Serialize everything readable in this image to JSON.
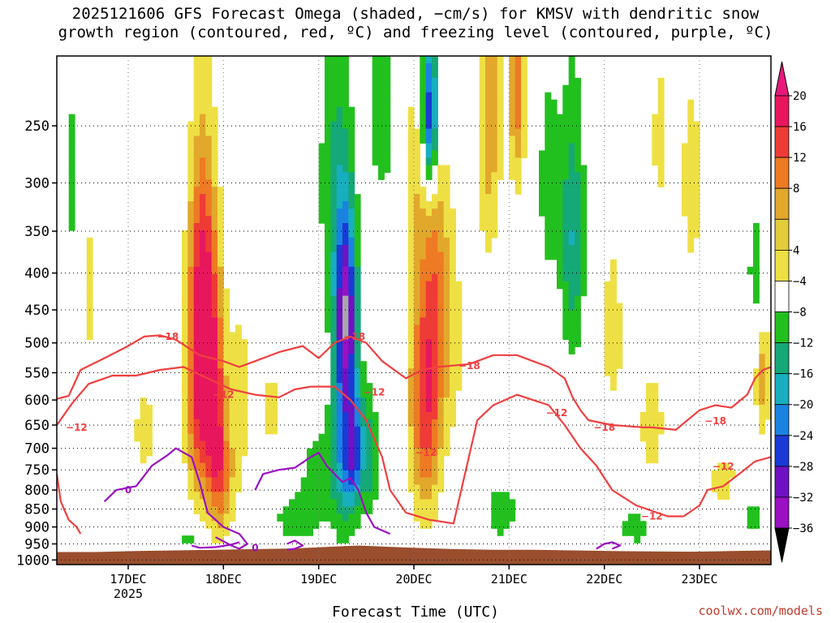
{
  "title_lines": [
    "2025121606 GFS Forecast Omega (shaded, −cm/s) for KMSV with dendritic snow",
    "growth region (contoured, red, ºC) and freezing level (contoured, purple, ºC)"
  ],
  "credit": "coolwx.com/models",
  "chart_data": {
    "type": "heatmap",
    "title": "2025121606 GFS Forecast Omega (shaded, −cm/s) for KMSV with dendritic snow growth region (contoured, red, ºC) and freezing level (contoured, purple, ºC)",
    "xlabel": "Forecast Time (UTC)",
    "ylabel": "",
    "x_ticks": [
      {
        "label": "17DEC",
        "sub": "2025",
        "t": 18
      },
      {
        "label": "18DEC",
        "t": 42
      },
      {
        "label": "19DEC",
        "t": 66
      },
      {
        "label": "20DEC",
        "t": 90
      },
      {
        "label": "21DEC",
        "t": 114
      },
      {
        "label": "22DEC",
        "t": 138
      },
      {
        "label": "23DEC",
        "t": 162
      }
    ],
    "x_range_hours": [
      0,
      180
    ],
    "y_ticks": [
      250,
      300,
      350,
      400,
      450,
      500,
      550,
      600,
      650,
      700,
      750,
      800,
      850,
      900,
      950,
      1000
    ],
    "y_range_hPa": [
      200,
      1015
    ],
    "y_scale": "log-pressure",
    "grid": "dotted",
    "colorbar": {
      "labels": [
        "20",
        "16",
        "12",
        "8",
        "4",
        "−4",
        "−8",
        "−12",
        "−16",
        "−20",
        "−24",
        "−28",
        "−32",
        "−36"
      ],
      "colors": [
        "#e8175d",
        "#ef3b36",
        "#ee7a24",
        "#e2a82c",
        "#e3cc3a",
        "#eee044",
        "#ffffff",
        "#22c01e",
        "#15a878",
        "#17aec0",
        "#1a83e2",
        "#1a3ad6",
        "#6f12c4",
        "#9a10c2",
        "#a8a8a8",
        "#000000"
      ],
      "top_arrow_color": "#e8187a",
      "bottom_arrow_color": "#000000"
    },
    "omega_features": [
      {
        "t": 36,
        "p": 560,
        "dt": 3.5,
        "dp": 240,
        "v": 22
      },
      {
        "t": 40,
        "p": 620,
        "dt": 2.5,
        "dp": 230,
        "v": 18
      },
      {
        "t": 37,
        "p": 380,
        "dt": 3,
        "dp": 150,
        "v": 10
      },
      {
        "t": 42,
        "p": 780,
        "dt": 3,
        "dp": 140,
        "v": 9
      },
      {
        "t": 46,
        "p": 600,
        "dt": 3,
        "dp": 200,
        "v": 6
      },
      {
        "t": 54,
        "p": 620,
        "dt": 4,
        "dp": 120,
        "v": 5
      },
      {
        "t": 22,
        "p": 660,
        "dt": 4,
        "dp": 140,
        "v": 5
      },
      {
        "t": 8,
        "p": 420,
        "dt": 3,
        "dp": 150,
        "v": 5
      },
      {
        "t": 26,
        "p": 300,
        "dt": 3,
        "dp": 120,
        "v": 4
      },
      {
        "t": 66,
        "p": 760,
        "dt": 5,
        "dp": 120,
        "v": -6
      },
      {
        "t": 72,
        "p": 650,
        "dt": 3,
        "dp": 260,
        "v": -14
      },
      {
        "t": 73,
        "p": 450,
        "dt": 2.5,
        "dp": 130,
        "v": -24
      },
      {
        "t": 75,
        "p": 700,
        "dt": 2.5,
        "dp": 140,
        "v": -20
      },
      {
        "t": 79,
        "p": 720,
        "dt": 2,
        "dp": 140,
        "v": -9
      },
      {
        "t": 70,
        "p": 300,
        "dt": 4,
        "dp": 150,
        "v": -8
      },
      {
        "t": 93,
        "p": 600,
        "dt": 4,
        "dp": 240,
        "v": 20
      },
      {
        "t": 96,
        "p": 420,
        "dt": 3,
        "dp": 160,
        "v": 9
      },
      {
        "t": 100,
        "p": 500,
        "dt": 3,
        "dp": 200,
        "v": 5
      },
      {
        "t": 90,
        "p": 300,
        "dt": 3,
        "dp": 120,
        "v": 5
      },
      {
        "t": 82,
        "p": 240,
        "dt": 4,
        "dp": 90,
        "v": -6
      },
      {
        "t": 94,
        "p": 240,
        "dt": 2,
        "dp": 60,
        "v": -26
      },
      {
        "t": 109,
        "p": 240,
        "dt": 3,
        "dp": 130,
        "v": 11
      },
      {
        "t": 116,
        "p": 220,
        "dt": 2,
        "dp": 80,
        "v": 14
      },
      {
        "t": 130,
        "p": 360,
        "dt": 3,
        "dp": 150,
        "v": -12
      },
      {
        "t": 124,
        "p": 300,
        "dt": 3,
        "dp": 120,
        "v": -6
      },
      {
        "t": 112,
        "p": 860,
        "dt": 5,
        "dp": 90,
        "v": -6
      },
      {
        "t": 140,
        "p": 480,
        "dt": 4,
        "dp": 200,
        "v": 5
      },
      {
        "t": 150,
        "p": 650,
        "dt": 5,
        "dp": 170,
        "v": 5
      },
      {
        "t": 160,
        "p": 300,
        "dt": 4,
        "dp": 150,
        "v": 5
      },
      {
        "t": 152,
        "p": 260,
        "dt": 3,
        "dp": 90,
        "v": 5
      },
      {
        "t": 168,
        "p": 780,
        "dt": 6,
        "dp": 120,
        "v": 5
      },
      {
        "t": 175,
        "p": 870,
        "dt": 4,
        "dp": 80,
        "v": -6
      },
      {
        "t": 178,
        "p": 560,
        "dt": 2,
        "dp": 100,
        "v": 11
      },
      {
        "t": 176,
        "p": 400,
        "dt": 2,
        "dp": 100,
        "v": -6
      },
      {
        "t": 60,
        "p": 880,
        "dt": 6,
        "dp": 80,
        "v": -6
      },
      {
        "t": 34,
        "p": 930,
        "dt": 4,
        "dp": 50,
        "v": -6
      },
      {
        "t": 146,
        "p": 900,
        "dt": 5,
        "dp": 60,
        "v": -6
      },
      {
        "t": 4,
        "p": 300,
        "dt": 2.5,
        "dp": 100,
        "v": -6
      }
    ],
    "contours": [
      {
        "name": "-18",
        "color": "#ef4040",
        "points": [
          [
            0,
            598
          ],
          [
            3,
            592
          ],
          [
            6,
            545
          ],
          [
            12,
            525
          ],
          [
            18,
            505
          ],
          [
            22,
            490
          ],
          [
            26,
            488
          ],
          [
            30,
            495
          ],
          [
            36,
            520
          ],
          [
            42,
            530
          ],
          [
            46,
            540
          ],
          [
            50,
            530
          ],
          [
            56,
            515
          ],
          [
            62,
            505
          ],
          [
            66,
            525
          ],
          [
            70,
            500
          ],
          [
            74,
            490
          ],
          [
            78,
            500
          ],
          [
            82,
            530
          ],
          [
            88,
            560
          ],
          [
            92,
            545
          ],
          [
            96,
            540
          ],
          [
            104,
            535
          ],
          [
            110,
            520
          ],
          [
            116,
            520
          ],
          [
            120,
            530
          ],
          [
            124,
            540
          ],
          [
            128,
            560
          ],
          [
            130,
            595
          ],
          [
            132,
            620
          ],
          [
            134,
            640
          ],
          [
            140,
            650
          ],
          [
            148,
            655
          ],
          [
            150,
            655
          ],
          [
            156,
            660
          ],
          [
            162,
            620
          ],
          [
            166,
            610
          ],
          [
            170,
            615
          ],
          [
            174,
            590
          ],
          [
            176,
            560
          ],
          [
            178,
            545
          ],
          [
            180,
            540
          ]
        ]
      },
      {
        "name": "-12",
        "color": "#ef4040",
        "points": [
          [
            0,
            650
          ],
          [
            4,
            605
          ],
          [
            8,
            570
          ],
          [
            14,
            555
          ],
          [
            20,
            555
          ],
          [
            26,
            545
          ],
          [
            32,
            540
          ],
          [
            38,
            560
          ],
          [
            44,
            580
          ],
          [
            50,
            590
          ],
          [
            56,
            595
          ],
          [
            60,
            580
          ],
          [
            64,
            575
          ],
          [
            70,
            575
          ],
          [
            74,
            600
          ],
          [
            78,
            640
          ],
          [
            82,
            720
          ],
          [
            84,
            800
          ],
          [
            88,
            860
          ],
          [
            94,
            880
          ],
          [
            100,
            890
          ],
          [
            106,
            640
          ],
          [
            110,
            610
          ],
          [
            116,
            590
          ],
          [
            120,
            600
          ],
          [
            124,
            610
          ],
          [
            128,
            650
          ],
          [
            132,
            700
          ],
          [
            136,
            740
          ],
          [
            140,
            800
          ],
          [
            146,
            840
          ],
          [
            154,
            870
          ],
          [
            158,
            870
          ],
          [
            162,
            840
          ],
          [
            164,
            800
          ],
          [
            168,
            790
          ],
          [
            172,
            760
          ],
          [
            176,
            730
          ],
          [
            180,
            720
          ]
        ]
      },
      {
        "name": "-12 (low)",
        "color": "#ef4040",
        "points": [
          [
            0,
            760
          ],
          [
            1,
            830
          ],
          [
            3,
            880
          ],
          [
            5,
            900
          ],
          [
            6,
            920
          ]
        ]
      },
      {
        "name": "0",
        "color": "#9a10c2",
        "points": [
          [
            12,
            830
          ],
          [
            15,
            800
          ],
          [
            20,
            790
          ],
          [
            24,
            740
          ],
          [
            28,
            715
          ],
          [
            30,
            700
          ],
          [
            34,
            720
          ],
          [
            36,
            780
          ],
          [
            38,
            860
          ],
          [
            42,
            900
          ],
          [
            46,
            920
          ],
          [
            48,
            950
          ],
          [
            46,
            965
          ],
          [
            44,
            955
          ],
          [
            40,
            930
          ]
        ]
      },
      {
        "name": "0 (b)",
        "color": "#9a10c2",
        "points": [
          [
            50,
            800
          ],
          [
            52,
            760
          ],
          [
            56,
            750
          ],
          [
            60,
            745
          ],
          [
            64,
            720
          ],
          [
            66,
            710
          ],
          [
            68,
            740
          ],
          [
            70,
            760
          ],
          [
            72,
            780
          ],
          [
            74,
            770
          ],
          [
            76,
            800
          ],
          [
            78,
            860
          ],
          [
            80,
            900
          ],
          [
            84,
            920
          ]
        ]
      },
      {
        "name": "0 (c)",
        "color": "#9a10c2",
        "points": [
          [
            34,
            955
          ],
          [
            36,
            962
          ],
          [
            40,
            960
          ],
          [
            44,
            952
          ],
          [
            46,
            945
          ]
        ]
      },
      {
        "name": "0 (d)",
        "color": "#9a10c2",
        "points": [
          [
            58,
            950
          ],
          [
            60,
            940
          ],
          [
            62,
            955
          ],
          [
            60,
            965
          ],
          [
            58,
            968
          ]
        ]
      },
      {
        "name": "0 (e)",
        "color": "#9a10c2",
        "points": [
          [
            136,
            965
          ],
          [
            138,
            950
          ],
          [
            140,
            945
          ],
          [
            142,
            955
          ],
          [
            140,
            965
          ]
        ]
      }
    ],
    "contour_labels": [
      {
        "text": "−18",
        "t": 28,
        "p": 490,
        "color": "#ef4040"
      },
      {
        "text": "−18",
        "t": 75,
        "p": 490,
        "color": "#ef4040"
      },
      {
        "text": "−18",
        "t": 104,
        "p": 538,
        "color": "#ef4040"
      },
      {
        "text": "−18",
        "t": 138,
        "p": 655,
        "color": "#ef4040"
      },
      {
        "text": "−18",
        "t": 166,
        "p": 642,
        "color": "#ef4040"
      },
      {
        "text": "−12",
        "t": 5,
        "p": 655,
        "color": "#ef4040"
      },
      {
        "text": "−12",
        "t": 42,
        "p": 590,
        "color": "#ef4040"
      },
      {
        "text": "−12",
        "t": 80,
        "p": 585,
        "color": "#ef4040"
      },
      {
        "text": "−12",
        "t": 93,
        "p": 710,
        "color": "#ef4040"
      },
      {
        "text": "−12",
        "t": 126,
        "p": 625,
        "color": "#ef4040"
      },
      {
        "text": "−12",
        "t": 150,
        "p": 870,
        "color": "#ef4040"
      },
      {
        "text": "−12",
        "t": 168,
        "p": 742,
        "color": "#ef4040"
      },
      {
        "text": "0",
        "t": 18,
        "p": 800,
        "color": "#9a10c2"
      },
      {
        "text": "0",
        "t": 50,
        "p": 962,
        "color": "#9a10c2"
      }
    ],
    "terrain_pressure": [
      [
        0,
        975
      ],
      [
        10,
        975
      ],
      [
        20,
        972
      ],
      [
        30,
        970
      ],
      [
        40,
        968
      ],
      [
        50,
        966
      ],
      [
        60,
        964
      ],
      [
        70,
        958
      ],
      [
        76,
        955
      ],
      [
        82,
        958
      ],
      [
        90,
        962
      ],
      [
        100,
        966
      ],
      [
        110,
        968
      ],
      [
        120,
        968
      ],
      [
        130,
        970
      ],
      [
        140,
        972
      ],
      [
        150,
        973
      ],
      [
        160,
        974
      ],
      [
        170,
        972
      ],
      [
        180,
        970
      ]
    ],
    "terrain_color": "#9a4e2e"
  }
}
